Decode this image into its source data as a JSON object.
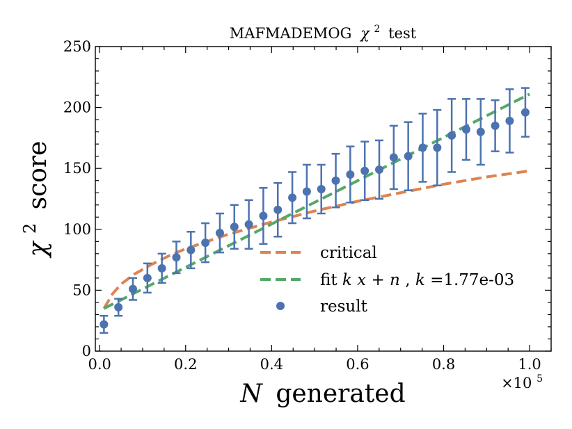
{
  "chart_data": {
    "type": "scatter",
    "title": "MAFMADEMOG χ² test",
    "title_parts": {
      "name": "MAFMADEMOG",
      "chi": "χ",
      "sup": "2",
      "suffix": "test"
    },
    "xlabel": "N generated",
    "xlabel_parts": {
      "var": "N",
      "rest": "generated"
    },
    "ylabel": "χ² score",
    "ylabel_parts": {
      "chi": "χ",
      "sup": "2",
      "rest": "score"
    },
    "x_offset_text": "×10⁵",
    "x_offset_parts": {
      "base": "×10",
      "exp": "5"
    },
    "xlim": [
      -0.01,
      1.05
    ],
    "ylim": [
      0,
      250
    ],
    "xticks": [
      0.0,
      0.2,
      0.4,
      0.6,
      0.8,
      1.0
    ],
    "xtick_labels": [
      "0.0",
      "0.2",
      "0.4",
      "0.6",
      "0.8",
      "1.0"
    ],
    "yticks": [
      0,
      50,
      100,
      150,
      200,
      250
    ],
    "ytick_labels": [
      "0",
      "50",
      "100",
      "150",
      "200",
      "250"
    ],
    "legend_position": "lower-right",
    "colors": {
      "critical": "#dd8452",
      "fit": "#55a868",
      "result": "#4c72b0"
    },
    "series": [
      {
        "name": "critical",
        "label": "critical",
        "kind": "dashed-line",
        "x": [
          0.01,
          0.03,
          0.05,
          0.08,
          0.12,
          0.16,
          0.2,
          0.25,
          0.3,
          0.35,
          0.4,
          0.5,
          0.6,
          0.7,
          0.8,
          0.9,
          1.0
        ],
        "y": [
          35,
          47,
          55,
          63,
          71,
          78,
          84,
          90,
          96,
          101,
          106,
          115,
          123,
          130,
          137,
          143,
          148
        ]
      },
      {
        "name": "fit",
        "label": "fit kx + n, k =1.77e-03",
        "label_parts": {
          "pre": "fit ",
          "k": "k",
          "x": "x",
          "plus": " + ",
          "n": "n",
          "comma": ", ",
          "eq": " =1.77e-03"
        },
        "kind": "dashed-line",
        "x": [
          0.01,
          1.0
        ],
        "y": [
          35,
          211
        ]
      },
      {
        "name": "result",
        "label": "result",
        "kind": "errorbar-points",
        "x": [
          0.01,
          0.0437,
          0.0774,
          0.1111,
          0.1448,
          0.1785,
          0.2122,
          0.2459,
          0.2796,
          0.3133,
          0.347,
          0.3807,
          0.4144,
          0.4481,
          0.4818,
          0.5155,
          0.5492,
          0.5829,
          0.6166,
          0.6503,
          0.684,
          0.7177,
          0.7514,
          0.7851,
          0.8188,
          0.8525,
          0.8862,
          0.9199,
          0.9536,
          0.99
        ],
        "y": [
          22,
          36,
          51,
          60,
          68,
          77,
          83,
          89,
          97,
          102,
          104,
          111,
          116,
          126,
          131,
          133,
          140,
          145,
          148,
          149,
          159,
          160,
          167,
          167,
          177,
          182,
          180,
          185,
          189,
          196
        ],
        "yerr": [
          7,
          7,
          9,
          12,
          12,
          13,
          15,
          16,
          16,
          18,
          20,
          23,
          22,
          21,
          22,
          20,
          22,
          23,
          24,
          24,
          26,
          28,
          28,
          31,
          30,
          25,
          27,
          21,
          26,
          20
        ]
      }
    ]
  }
}
